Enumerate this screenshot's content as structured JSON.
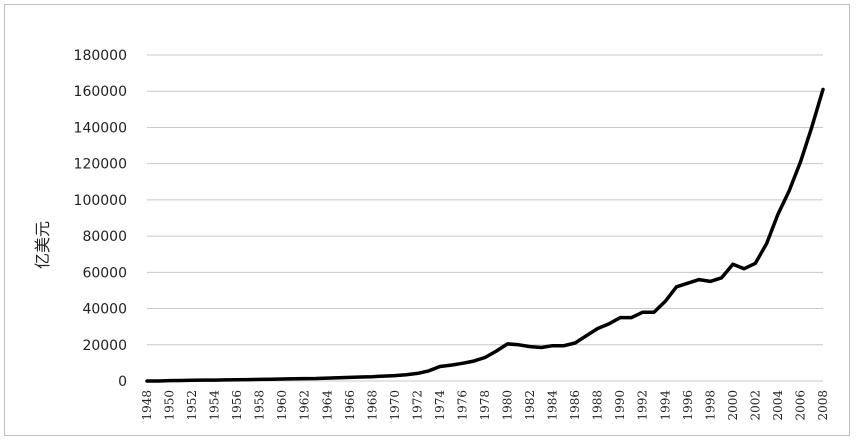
{
  "chart_data": {
    "type": "line",
    "title": "",
    "xlabel": "",
    "ylabel": "亿美元",
    "ylim": [
      0,
      180000
    ],
    "xlim": [
      1948,
      2008
    ],
    "grid": true,
    "y_ticks": [
      "0",
      "20000",
      "40000",
      "60000",
      "80000",
      "100000",
      "120000",
      "140000",
      "160000",
      "180000"
    ],
    "x_ticks": [
      "1948",
      "1950",
      "1952",
      "1954",
      "1956",
      "1958",
      "1960",
      "1962",
      "1964",
      "1966",
      "1968",
      "1970",
      "1972",
      "1974",
      "1976",
      "1978",
      "1980",
      "1982",
      "1984",
      "1986",
      "1988",
      "1990",
      "1992",
      "1994",
      "1996",
      "1998",
      "2000",
      "2002",
      "2004",
      "2006",
      "2008"
    ],
    "line_color": "#000000",
    "grid_color": "#c8c8c8",
    "series": [
      {
        "x": [
          1948,
          1949,
          1950,
          1951,
          1952,
          1953,
          1954,
          1955,
          1956,
          1957,
          1958,
          1959,
          1960,
          1961,
          1962,
          1963,
          1964,
          1965,
          1966,
          1967,
          1968,
          1969,
          1970,
          1971,
          1972,
          1973,
          1974,
          1975,
          1976,
          1977,
          1978,
          1979,
          1980,
          1981,
          1982,
          1983,
          1984,
          1985,
          1986,
          1987,
          1988,
          1989,
          1990,
          1991,
          1992,
          1993,
          1994,
          1995,
          1996,
          1997,
          1998,
          1999,
          2000,
          2001,
          2002,
          2003,
          2004,
          2005,
          2006,
          2007,
          2008
        ],
        "values": [
          0,
          0,
          200,
          300,
          400,
          500,
          500,
          600,
          700,
          800,
          900,
          1000,
          1100,
          1200,
          1300,
          1400,
          1600,
          1800,
          2000,
          2200,
          2400,
          2700,
          3000,
          3500,
          4200,
          5600,
          8000,
          8800,
          9800,
          11000,
          13000,
          16500,
          20500,
          20000,
          19000,
          18500,
          19500,
          19500,
          21000,
          25000,
          29000,
          31500,
          35000,
          35000,
          38000,
          38000,
          44000,
          52000,
          54000,
          56000,
          55000,
          57000,
          64500,
          62000,
          65000,
          76000,
          92000,
          105000,
          121000,
          140000,
          161000
        ]
      }
    ]
  }
}
